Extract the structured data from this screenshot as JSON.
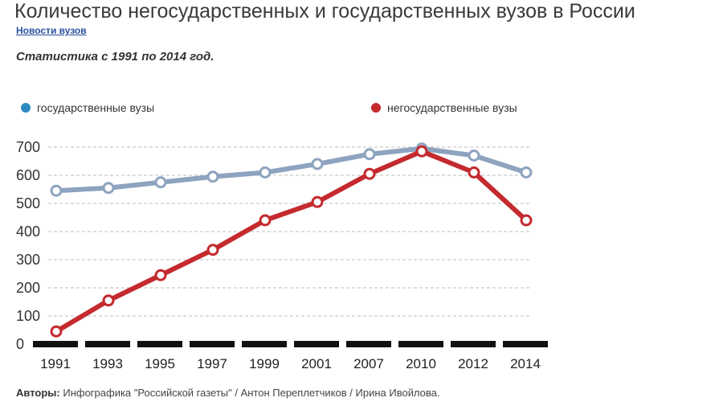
{
  "header": {
    "title": "Количество негосударственных и государственных вузов в России",
    "source_link": "Новости вузов",
    "subtitle": "Статистика с 1991 по 2014 год."
  },
  "footer": {
    "authors_label": "Авторы:",
    "authors_text": "Инфографика \"Российской газеты\" / Антон Переплетчиков / Ирина Ивойлова."
  },
  "chart_data": {
    "type": "line",
    "title": "Количество негосударственных и государственных вузов в России",
    "subtitle": "Статистика с 1991 по 2014 год.",
    "xlabel": "",
    "ylabel": "",
    "categories": [
      "1991",
      "1993",
      "1995",
      "1997",
      "1999",
      "2001",
      "2007",
      "2010",
      "2012",
      "2014"
    ],
    "yticks": [
      "0",
      "100",
      "200",
      "300",
      "400",
      "500",
      "600",
      "700"
    ],
    "ylim": [
      0,
      700
    ],
    "grid": true,
    "legend_placement": "top",
    "series": [
      {
        "name": "государственные вузы",
        "color": "#8da3bf",
        "dot_color": "#2e8bc0",
        "values": [
          545,
          555,
          575,
          595,
          610,
          640,
          675,
          695,
          670,
          610
        ]
      },
      {
        "name": "негосударственные вузы",
        "color": "#c42a2e",
        "dot_color": "#c42a2e",
        "values": [
          45,
          155,
          245,
          335,
          440,
          505,
          605,
          685,
          610,
          440
        ]
      }
    ]
  }
}
